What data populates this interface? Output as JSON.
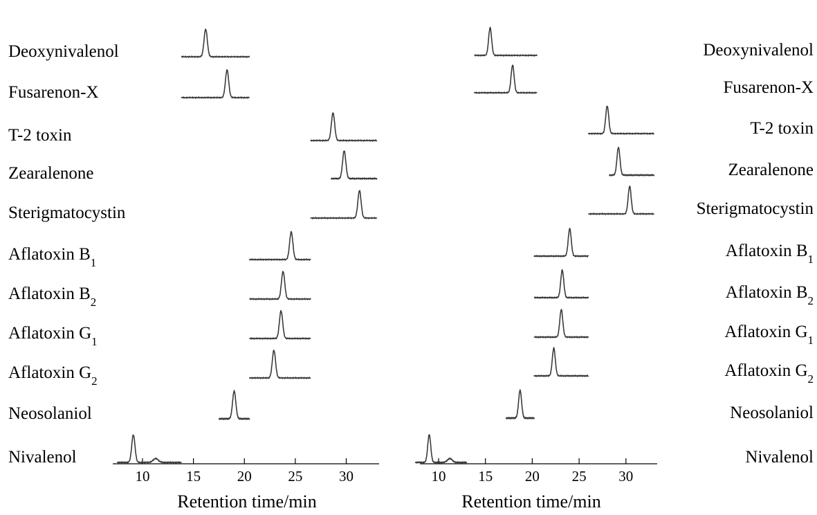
{
  "chart_data": [
    {
      "type": "line",
      "xlabel": "Retention time/min",
      "xlim": [
        7.5,
        33
      ],
      "xticks": [
        10,
        15,
        20,
        25,
        30
      ],
      "label_side": "left",
      "series": [
        {
          "name": "Deoxynivalenol",
          "sub": "",
          "retention_time": 16.2,
          "range": [
            13.8,
            20.5
          ]
        },
        {
          "name": "Fusarenon-X",
          "sub": "",
          "retention_time": 18.3,
          "range": [
            13.8,
            20.5
          ]
        },
        {
          "name": "T-2 toxin",
          "sub": "",
          "retention_time": 28.7,
          "range": [
            26.5,
            33
          ]
        },
        {
          "name": "Zearalenone",
          "sub": "",
          "retention_time": 29.8,
          "range": [
            28.5,
            33
          ]
        },
        {
          "name": "Sterigmatocystin",
          "sub": "",
          "retention_time": 31.3,
          "range": [
            26.5,
            33
          ]
        },
        {
          "name": "Aflatoxin B",
          "sub": "1",
          "retention_time": 24.6,
          "range": [
            20.5,
            26.5
          ]
        },
        {
          "name": "Aflatoxin B",
          "sub": "2",
          "retention_time": 23.8,
          "range": [
            20.5,
            26.5
          ]
        },
        {
          "name": "Aflatoxin G",
          "sub": "1",
          "retention_time": 23.6,
          "range": [
            20.5,
            26.5
          ]
        },
        {
          "name": "Aflatoxin G",
          "sub": "2",
          "retention_time": 22.9,
          "range": [
            20.5,
            26.5
          ]
        },
        {
          "name": "Neosolaniol",
          "sub": "",
          "retention_time": 19.0,
          "range": [
            17.5,
            20.5
          ]
        },
        {
          "name": "Nivalenol",
          "sub": "",
          "retention_time": 9.1,
          "range": [
            7.5,
            13.8
          ]
        }
      ]
    },
    {
      "type": "line",
      "xlabel": "Retention time/min",
      "xlim": [
        7.5,
        33
      ],
      "xticks": [
        10,
        15,
        20,
        25,
        30
      ],
      "label_side": "right",
      "series": [
        {
          "name": "Deoxynivalenol",
          "sub": "",
          "retention_time": 15.5,
          "range": [
            13.8,
            20.5
          ]
        },
        {
          "name": "Fusarenon-X",
          "sub": "",
          "retention_time": 17.9,
          "range": [
            13.8,
            20.5
          ]
        },
        {
          "name": "T-2 toxin",
          "sub": "",
          "retention_time": 28.0,
          "range": [
            26.0,
            33
          ]
        },
        {
          "name": "Zearalenone",
          "sub": "",
          "retention_time": 29.2,
          "range": [
            28.2,
            33
          ]
        },
        {
          "name": "Sterigmatocystin",
          "sub": "",
          "retention_time": 30.4,
          "range": [
            26.0,
            33
          ]
        },
        {
          "name": "Aflatoxin B",
          "sub": "1",
          "retention_time": 24.0,
          "range": [
            20.2,
            26.0
          ]
        },
        {
          "name": "Aflatoxin B",
          "sub": "2",
          "retention_time": 23.2,
          "range": [
            20.2,
            26.0
          ]
        },
        {
          "name": "Aflatoxin G",
          "sub": "1",
          "retention_time": 23.1,
          "range": [
            20.2,
            26.0
          ]
        },
        {
          "name": "Aflatoxin G",
          "sub": "2",
          "retention_time": 22.3,
          "range": [
            20.2,
            26.0
          ]
        },
        {
          "name": "Neosolaniol",
          "sub": "",
          "retention_time": 18.7,
          "range": [
            17.2,
            20.2
          ]
        },
        {
          "name": "Nivalenol",
          "sub": "",
          "retention_time": 9.0,
          "range": [
            7.5,
            13.0
          ]
        }
      ]
    }
  ]
}
